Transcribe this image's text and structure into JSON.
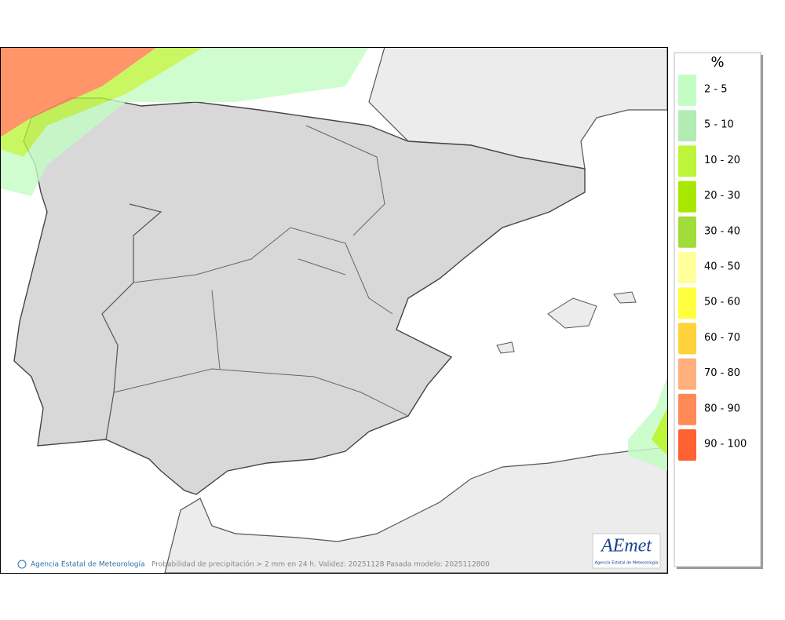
{
  "legend": {
    "title": "%",
    "items": [
      {
        "label": "2 - 5",
        "color": "#c4fdc4"
      },
      {
        "label": "5 - 10",
        "color": "#b2ecb2"
      },
      {
        "label": "10 - 20",
        "color": "#bcf53a"
      },
      {
        "label": "20 - 30",
        "color": "#a8e800"
      },
      {
        "label": "30 - 40",
        "color": "#a0dc3a"
      },
      {
        "label": "40 - 50",
        "color": "#ffff9c"
      },
      {
        "label": "50 - 60",
        "color": "#ffff40"
      },
      {
        "label": "60 - 70",
        "color": "#ffd23c"
      },
      {
        "label": "70 - 80",
        "color": "#ffb07c"
      },
      {
        "label": "80 - 90",
        "color": "#ff8a58"
      },
      {
        "label": "90 - 100",
        "color": "#ff6232"
      }
    ]
  },
  "footer": {
    "credit": "Agencia Estatal de Meteorología",
    "caption": "Probabilidad de precipitación > 2 mm en 24 h. Validez: 20251128 Pasada modelo: 2025112800"
  },
  "logo": {
    "name": "AEmet",
    "subtitle": "Agencia Estatal de Meteorología"
  }
}
